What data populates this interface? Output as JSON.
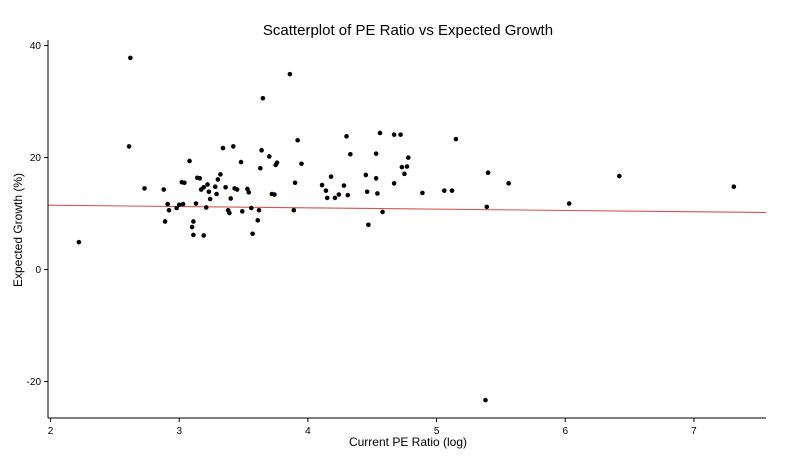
{
  "chart_data": {
    "type": "scatter",
    "title": "Scatterplot of PE Ratio vs Expected Growth",
    "xlabel": "Current PE Ratio (log)",
    "ylabel": "Expected Growth (%)",
    "xlim": [
      1.98,
      7.56
    ],
    "ylim": [
      -26.5,
      41.0
    ],
    "x_ticks": [
      2,
      3,
      4,
      5,
      6,
      7
    ],
    "y_ticks": [
      -20,
      0,
      20,
      40
    ],
    "grid": false,
    "legend": "none",
    "point_color": "#000000",
    "trendline": {
      "from": [
        1.98,
        11.5
      ],
      "to": [
        7.56,
        10.2
      ],
      "color": "#d9534f"
    },
    "points": [
      {
        "x": 2.22,
        "y": 4.9
      },
      {
        "x": 2.62,
        "y": 37.8
      },
      {
        "x": 2.61,
        "y": 22.0
      },
      {
        "x": 2.73,
        "y": 14.5
      },
      {
        "x": 2.88,
        "y": 14.3
      },
      {
        "x": 2.89,
        "y": 8.6
      },
      {
        "x": 2.91,
        "y": 11.7
      },
      {
        "x": 2.92,
        "y": 10.6
      },
      {
        "x": 2.98,
        "y": 11.0
      },
      {
        "x": 3.0,
        "y": 11.6
      },
      {
        "x": 3.02,
        "y": 15.6
      },
      {
        "x": 3.03,
        "y": 11.7
      },
      {
        "x": 3.04,
        "y": 15.5
      },
      {
        "x": 3.08,
        "y": 19.4
      },
      {
        "x": 3.1,
        "y": 7.6
      },
      {
        "x": 3.11,
        "y": 6.2
      },
      {
        "x": 3.11,
        "y": 8.6
      },
      {
        "x": 3.13,
        "y": 11.8
      },
      {
        "x": 3.14,
        "y": 16.4
      },
      {
        "x": 3.16,
        "y": 16.3
      },
      {
        "x": 3.17,
        "y": 14.3
      },
      {
        "x": 3.19,
        "y": 6.1
      },
      {
        "x": 3.19,
        "y": 14.7
      },
      {
        "x": 3.21,
        "y": 11.1
      },
      {
        "x": 3.22,
        "y": 15.2
      },
      {
        "x": 3.23,
        "y": 13.9
      },
      {
        "x": 3.24,
        "y": 12.6
      },
      {
        "x": 3.28,
        "y": 14.8
      },
      {
        "x": 3.29,
        "y": 13.5
      },
      {
        "x": 3.3,
        "y": 16.1
      },
      {
        "x": 3.32,
        "y": 17.0
      },
      {
        "x": 3.34,
        "y": 21.7
      },
      {
        "x": 3.36,
        "y": 14.7
      },
      {
        "x": 3.38,
        "y": 10.6
      },
      {
        "x": 3.39,
        "y": 10.1
      },
      {
        "x": 3.4,
        "y": 12.7
      },
      {
        "x": 3.42,
        "y": 22.0
      },
      {
        "x": 3.43,
        "y": 14.5
      },
      {
        "x": 3.45,
        "y": 14.3
      },
      {
        "x": 3.48,
        "y": 19.2
      },
      {
        "x": 3.49,
        "y": 10.4
      },
      {
        "x": 3.53,
        "y": 14.4
      },
      {
        "x": 3.54,
        "y": 13.8
      },
      {
        "x": 3.56,
        "y": 11.0
      },
      {
        "x": 3.57,
        "y": 6.4
      },
      {
        "x": 3.61,
        "y": 8.8
      },
      {
        "x": 3.62,
        "y": 10.6
      },
      {
        "x": 3.63,
        "y": 18.1
      },
      {
        "x": 3.64,
        "y": 21.3
      },
      {
        "x": 3.65,
        "y": 30.6
      },
      {
        "x": 3.7,
        "y": 20.2
      },
      {
        "x": 3.72,
        "y": 13.5
      },
      {
        "x": 3.74,
        "y": 13.4
      },
      {
        "x": 3.75,
        "y": 18.7
      },
      {
        "x": 3.76,
        "y": 19.1
      },
      {
        "x": 3.86,
        "y": 34.9
      },
      {
        "x": 3.89,
        "y": 10.6
      },
      {
        "x": 3.9,
        "y": 15.5
      },
      {
        "x": 3.92,
        "y": 23.1
      },
      {
        "x": 3.95,
        "y": 18.9
      },
      {
        "x": 4.11,
        "y": 15.1
      },
      {
        "x": 4.14,
        "y": 14.1
      },
      {
        "x": 4.15,
        "y": 12.8
      },
      {
        "x": 4.18,
        "y": 16.6
      },
      {
        "x": 4.21,
        "y": 12.8
      },
      {
        "x": 4.24,
        "y": 13.4
      },
      {
        "x": 4.28,
        "y": 15.0
      },
      {
        "x": 4.3,
        "y": 23.8
      },
      {
        "x": 4.31,
        "y": 13.3
      },
      {
        "x": 4.33,
        "y": 20.6
      },
      {
        "x": 4.45,
        "y": 16.9
      },
      {
        "x": 4.46,
        "y": 13.9
      },
      {
        "x": 4.47,
        "y": 8.0
      },
      {
        "x": 4.53,
        "y": 16.3
      },
      {
        "x": 4.53,
        "y": 20.7
      },
      {
        "x": 4.54,
        "y": 13.6
      },
      {
        "x": 4.56,
        "y": 24.4
      },
      {
        "x": 4.58,
        "y": 10.3
      },
      {
        "x": 4.67,
        "y": 15.4
      },
      {
        "x": 4.67,
        "y": 24.1
      },
      {
        "x": 4.72,
        "y": 24.1
      },
      {
        "x": 4.73,
        "y": 18.3
      },
      {
        "x": 4.75,
        "y": 17.1
      },
      {
        "x": 4.77,
        "y": 18.4
      },
      {
        "x": 4.78,
        "y": 20.0
      },
      {
        "x": 4.89,
        "y": 13.7
      },
      {
        "x": 5.06,
        "y": 14.1
      },
      {
        "x": 5.12,
        "y": 14.1
      },
      {
        "x": 5.15,
        "y": 23.3
      },
      {
        "x": 5.38,
        "y": -23.3
      },
      {
        "x": 5.39,
        "y": 11.2
      },
      {
        "x": 5.4,
        "y": 17.3
      },
      {
        "x": 5.56,
        "y": 15.4
      },
      {
        "x": 6.03,
        "y": 11.8
      },
      {
        "x": 6.42,
        "y": 16.7
      },
      {
        "x": 7.31,
        "y": 14.8
      }
    ]
  }
}
